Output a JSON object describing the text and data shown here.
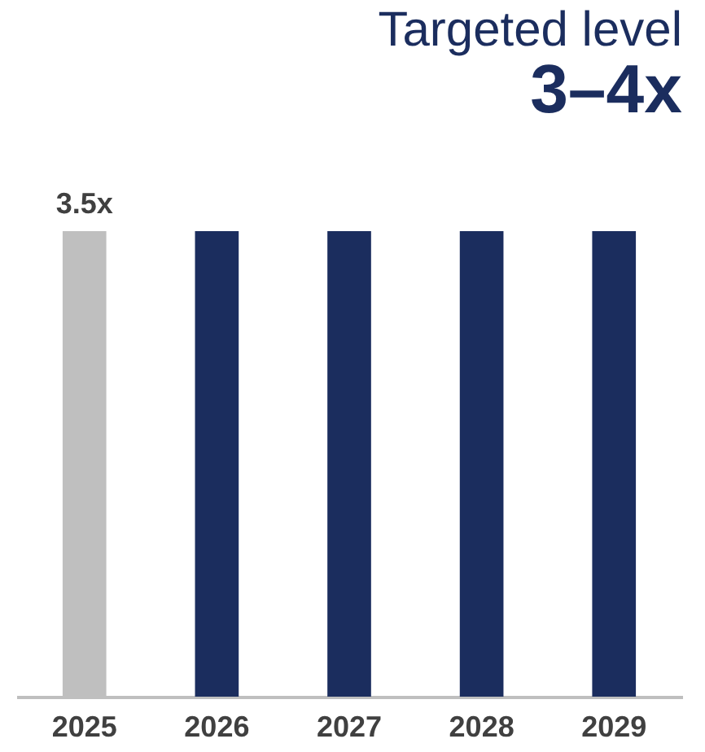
{
  "chart_data": {
    "type": "bar",
    "title": "Targeted level",
    "subtitle": "3–4x",
    "categories": [
      "2025",
      "2026",
      "2027",
      "2028",
      "2029"
    ],
    "values": [
      3.5,
      3.5,
      3.5,
      3.5,
      3.5
    ],
    "value_labels": [
      "3.5x",
      null,
      null,
      null,
      null
    ],
    "colors": [
      "#bfbfbf",
      "#1b2d5e",
      "#1b2d5e",
      "#1b2d5e",
      "#1b2d5e"
    ]
  }
}
